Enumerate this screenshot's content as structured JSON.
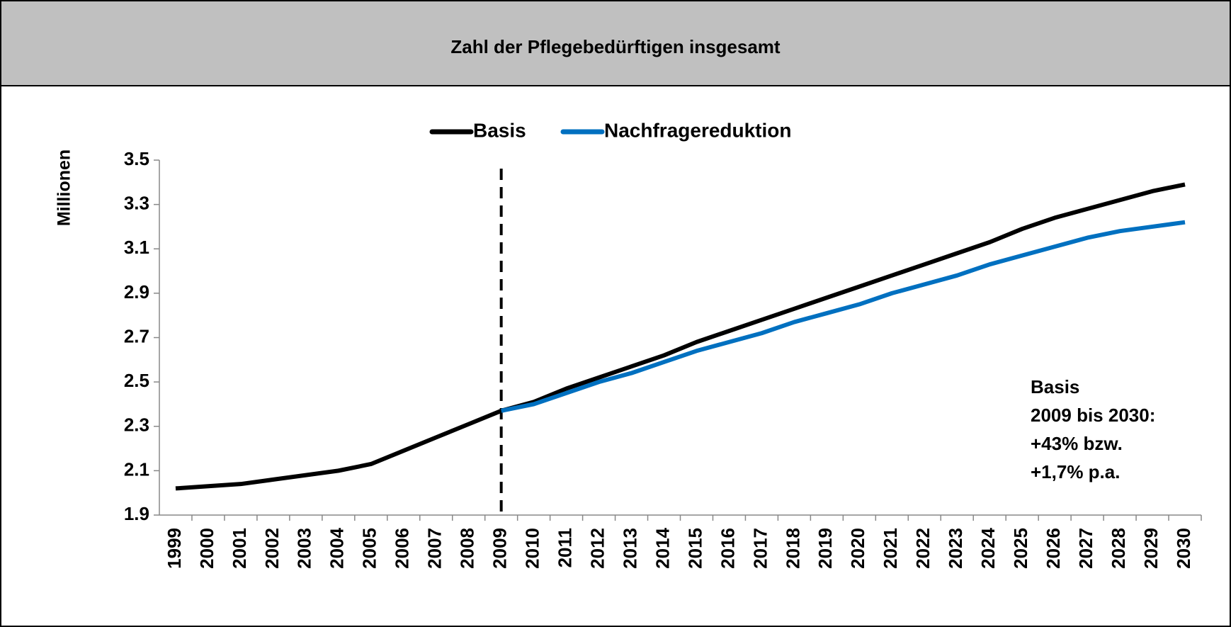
{
  "chart_data": {
    "type": "line",
    "title": "Zahl der Pflegebedürftigen insgesamt",
    "y_label": "Millionen",
    "categories": [
      "1999",
      "2000",
      "2001",
      "2002",
      "2003",
      "2004",
      "2005",
      "2006",
      "2007",
      "2008",
      "2009",
      "2010",
      "2011",
      "2012",
      "2013",
      "2014",
      "2015",
      "2016",
      "2017",
      "2018",
      "2019",
      "2020",
      "2021",
      "2022",
      "2023",
      "2024",
      "2025",
      "2026",
      "2027",
      "2028",
      "2029",
      "2030"
    ],
    "series": [
      {
        "name": "Basis",
        "color": "#000000",
        "values": [
          2.02,
          2.03,
          2.04,
          2.06,
          2.08,
          2.1,
          2.13,
          2.19,
          2.25,
          2.31,
          2.37,
          2.41,
          2.47,
          2.52,
          2.57,
          2.62,
          2.68,
          2.73,
          2.78,
          2.83,
          2.88,
          2.93,
          2.98,
          3.03,
          3.08,
          3.13,
          3.19,
          3.24,
          3.28,
          3.32,
          3.36,
          3.39
        ]
      },
      {
        "name": "Nachfragereduktion",
        "color": "#0070c0",
        "values": [
          null,
          null,
          null,
          null,
          null,
          null,
          null,
          null,
          null,
          null,
          2.37,
          2.4,
          2.45,
          2.5,
          2.54,
          2.59,
          2.64,
          2.68,
          2.72,
          2.77,
          2.81,
          2.85,
          2.9,
          2.94,
          2.98,
          3.03,
          3.07,
          3.11,
          3.15,
          3.18,
          3.2,
          3.22
        ]
      }
    ],
    "ylim": [
      1.9,
      3.5
    ],
    "yticks": [
      1.9,
      2.1,
      2.3,
      2.5,
      2.7,
      2.9,
      3.1,
      3.3,
      3.5
    ],
    "vertical_line_at": "2009",
    "legend": "top",
    "annotation": [
      "Basis",
      "2009 bis 2030:",
      "+43% bzw.",
      "+1,7% p.a."
    ]
  }
}
